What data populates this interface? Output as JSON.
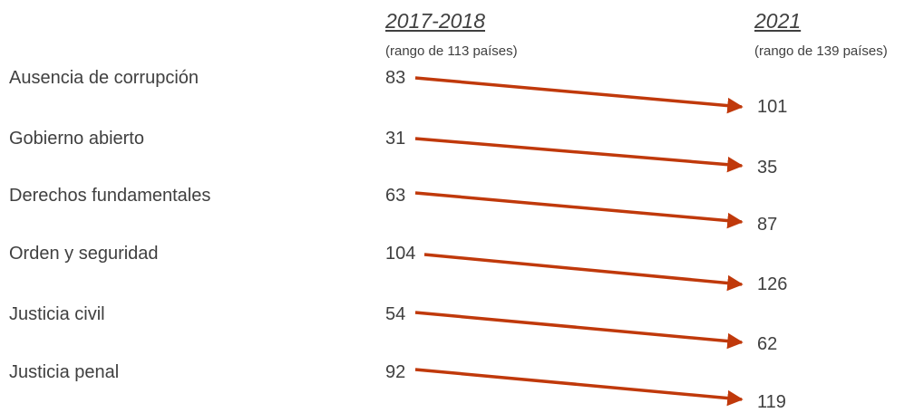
{
  "columns": {
    "left": {
      "title": "2017-2018",
      "note": "(rango de 113 países)"
    },
    "right": {
      "title": "2021",
      "note": "(rango de 139 países)"
    }
  },
  "arrow_color": "#c0390b",
  "rows": [
    {
      "label": "Ausencia de corrupción",
      "from": "83",
      "to": "101"
    },
    {
      "label": "Gobierno abierto",
      "from": "31",
      "to": "35"
    },
    {
      "label": "Derechos fundamentales",
      "from": "63",
      "to": "87"
    },
    {
      "label": "Orden y seguridad",
      "from": "104",
      "to": "126"
    },
    {
      "label": "Justicia civil",
      "from": "54",
      "to": "62"
    },
    {
      "label": "Justicia penal",
      "from": "92",
      "to": "119"
    }
  ]
}
